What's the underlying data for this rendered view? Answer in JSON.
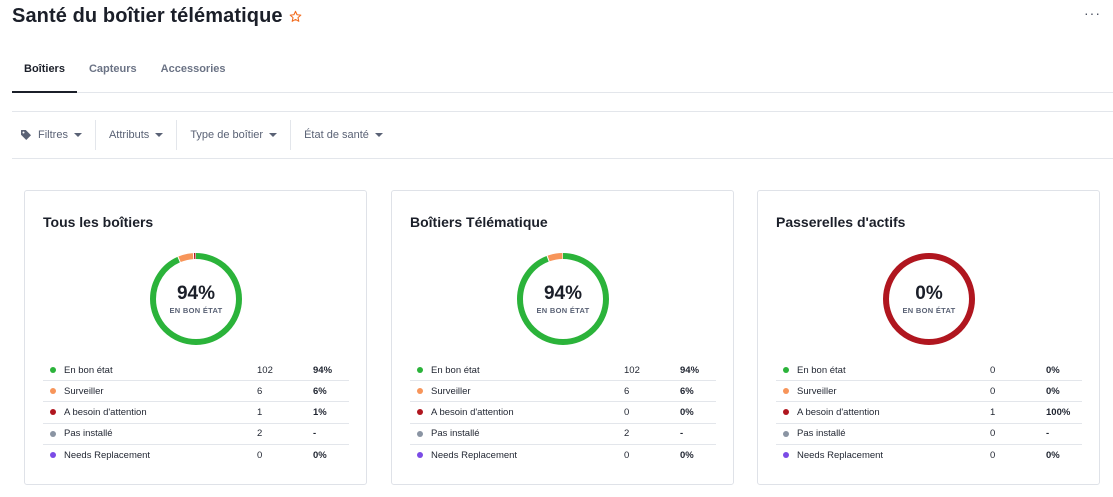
{
  "header": {
    "title": "Santé du boîtier télématique",
    "favorite_icon": "star-outline-icon",
    "more_icon": "more-horizontal-icon",
    "more_label": "···"
  },
  "tabs": [
    {
      "label": "Boîtiers",
      "active": true
    },
    {
      "label": "Capteurs",
      "active": false
    },
    {
      "label": "Accessories",
      "active": false
    }
  ],
  "filters": [
    {
      "label": "Filtres",
      "icon": "tag-icon"
    },
    {
      "label": "Attributs"
    },
    {
      "label": "Type de boîtier"
    },
    {
      "label": "État de santé"
    }
  ],
  "colors": {
    "good": "#2bb33a",
    "monitor": "#f7955a",
    "attention": "#b0161f",
    "not_installed": "#8a94a3",
    "needs_replacement": "#7b4be6",
    "star": "#f26b1d"
  },
  "cards": [
    {
      "title": "Tous les boîtiers",
      "percent": "94%",
      "percent_label": "EN BON ÉTAT",
      "rows": [
        {
          "label": "En bon état",
          "count": "102",
          "pct": "94%",
          "color": "#2bb33a"
        },
        {
          "label": "Surveiller",
          "count": "6",
          "pct": "6%",
          "color": "#f7955a"
        },
        {
          "label": "A besoin d'attention",
          "count": "1",
          "pct": "1%",
          "color": "#b0161f"
        },
        {
          "label": "Pas installé",
          "count": "2",
          "pct": "-",
          "color": "#8a94a3"
        },
        {
          "label": "Needs Replacement",
          "count": "0",
          "pct": "0%",
          "color": "#7b4be6"
        }
      ],
      "donut_share": {
        "good": 0.936,
        "monitor": 0.055,
        "attention": 0.009
      }
    },
    {
      "title": "Boîtiers Télématique",
      "percent": "94%",
      "percent_label": "EN BON ÉTAT",
      "rows": [
        {
          "label": "En bon état",
          "count": "102",
          "pct": "94%",
          "color": "#2bb33a"
        },
        {
          "label": "Surveiller",
          "count": "6",
          "pct": "6%",
          "color": "#f7955a"
        },
        {
          "label": "A besoin d'attention",
          "count": "0",
          "pct": "0%",
          "color": "#b0161f"
        },
        {
          "label": "Pas installé",
          "count": "2",
          "pct": "-",
          "color": "#8a94a3"
        },
        {
          "label": "Needs Replacement",
          "count": "0",
          "pct": "0%",
          "color": "#7b4be6"
        }
      ],
      "donut_share": {
        "good": 0.944,
        "monitor": 0.056,
        "attention": 0
      }
    },
    {
      "title": "Passerelles d'actifs",
      "percent": "0%",
      "percent_label": "EN BON ÉTAT",
      "rows": [
        {
          "label": "En bon état",
          "count": "0",
          "pct": "0%",
          "color": "#2bb33a"
        },
        {
          "label": "Surveiller",
          "count": "0",
          "pct": "0%",
          "color": "#f7955a"
        },
        {
          "label": "A besoin d'attention",
          "count": "1",
          "pct": "100%",
          "color": "#b0161f"
        },
        {
          "label": "Pas installé",
          "count": "0",
          "pct": "-",
          "color": "#8a94a3"
        },
        {
          "label": "Needs Replacement",
          "count": "0",
          "pct": "0%",
          "color": "#7b4be6"
        }
      ],
      "donut_share": {
        "good": 0,
        "monitor": 0,
        "attention": 1
      }
    }
  ]
}
